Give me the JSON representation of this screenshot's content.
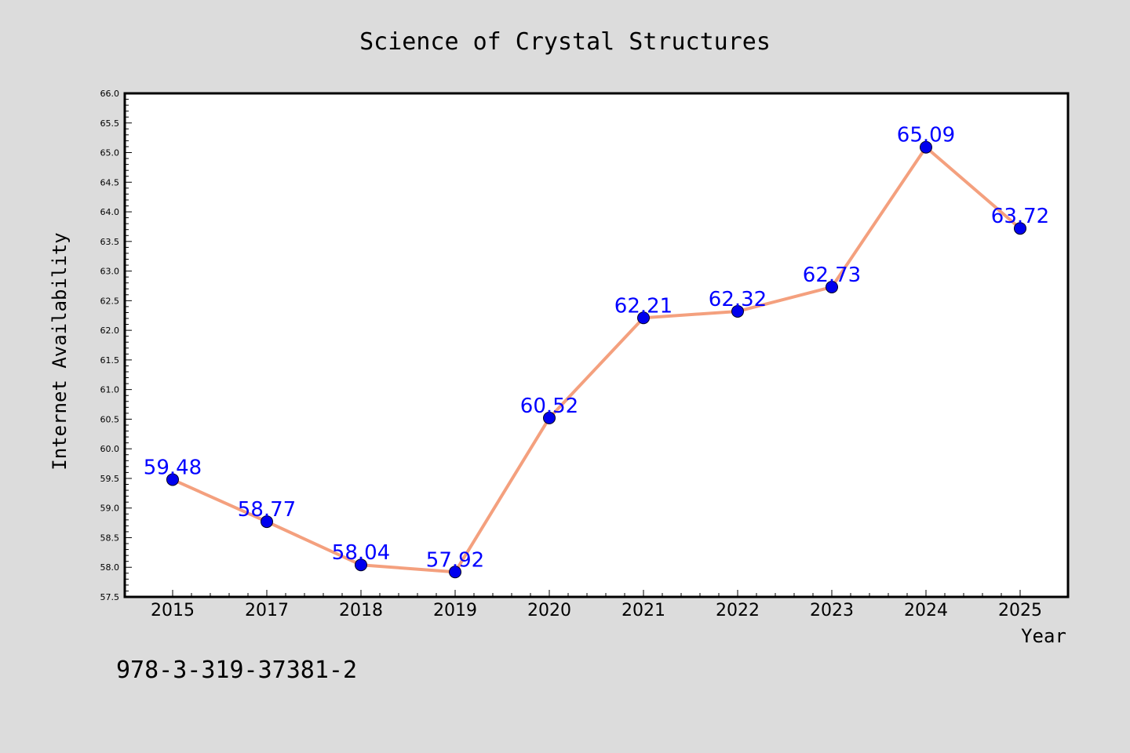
{
  "chart_data": {
    "type": "line",
    "title": "Science of Crystal Structures",
    "xlabel": "Year",
    "ylabel": "Internet Availability",
    "categories": [
      "2015",
      "2017",
      "2018",
      "2019",
      "2020",
      "2021",
      "2022",
      "2023",
      "2024",
      "2025"
    ],
    "series": [
      {
        "values": [
          59.48,
          58.77,
          58.04,
          57.92,
          60.52,
          62.21,
          62.32,
          62.73,
          65.09,
          63.72
        ],
        "labels": [
          "59.48",
          "58.77",
          "58.04",
          "57.92",
          "60.52",
          "62.21",
          "62.32",
          "62.73",
          "65.09",
          "63.72"
        ]
      }
    ],
    "ylim": [
      57.5,
      66.0
    ],
    "yticks": [
      "57.5",
      "58.0",
      "58.5",
      "59.0",
      "59.5",
      "60.0",
      "60.5",
      "61.0",
      "61.5",
      "62.0",
      "62.5",
      "63.0",
      "63.5",
      "64.0",
      "64.5",
      "65.0",
      "65.5",
      "66.0"
    ],
    "grid": false,
    "legend": "none"
  },
  "footnote": "978-3-319-37381-2",
  "colors": {
    "background": "#dcdcdc",
    "plot_background": "#ffffff",
    "line": "#f4a07e",
    "marker": "#0000ee",
    "data_label": "#0000ff"
  }
}
